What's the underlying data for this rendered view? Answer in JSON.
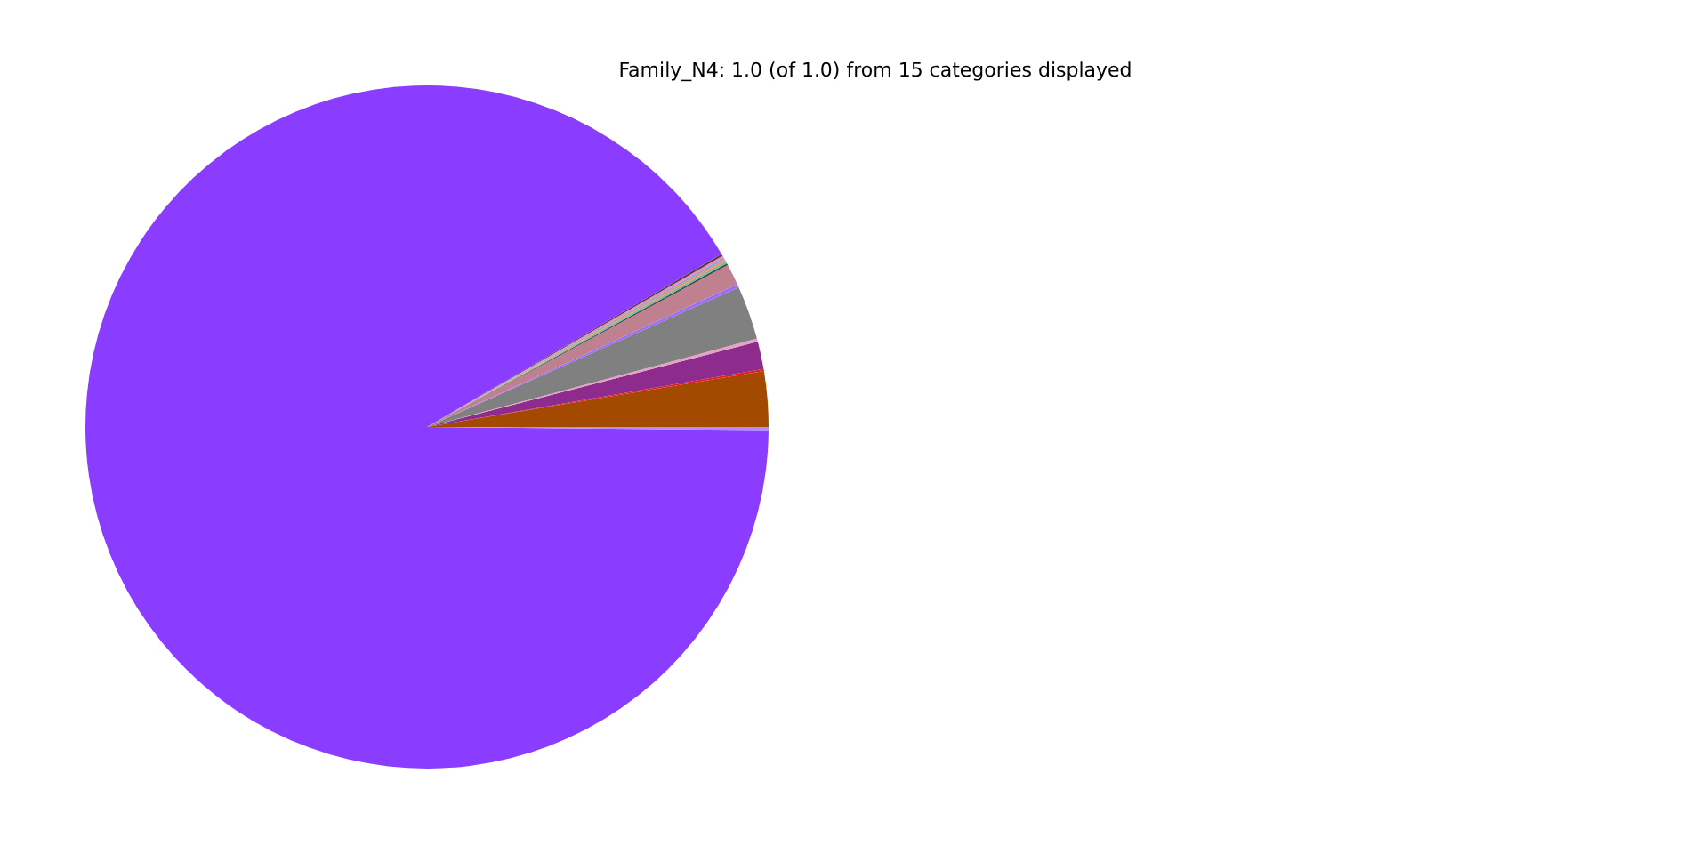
{
  "chart_data": {
    "type": "pie",
    "title": "Family_N4: 1.0 (of 1.0) from 15 categories displayed",
    "categories": [
      null,
      null,
      null,
      null,
      null,
      null,
      null,
      null,
      null,
      null,
      null,
      null,
      null,
      null,
      null
    ],
    "values": [
      2.63,
      0.1,
      1.3,
      0.15,
      2.55,
      0.15,
      1.0,
      0.1,
      0.1,
      0.1,
      0.1,
      0.1,
      0.1,
      91.69,
      0.15
    ],
    "colors": [
      "#a34a00",
      "#e41a1c",
      "#8e2c8e",
      "#e8a0c8",
      "#808080",
      "#9b6bff",
      "#bf8090",
      "#4d4d4d",
      "#66c2a5",
      "#fc8d62",
      "#8da0cb",
      "#e78ac3",
      "#5a3a3a",
      "#8b3dff",
      "#b58aff"
    ]
  }
}
